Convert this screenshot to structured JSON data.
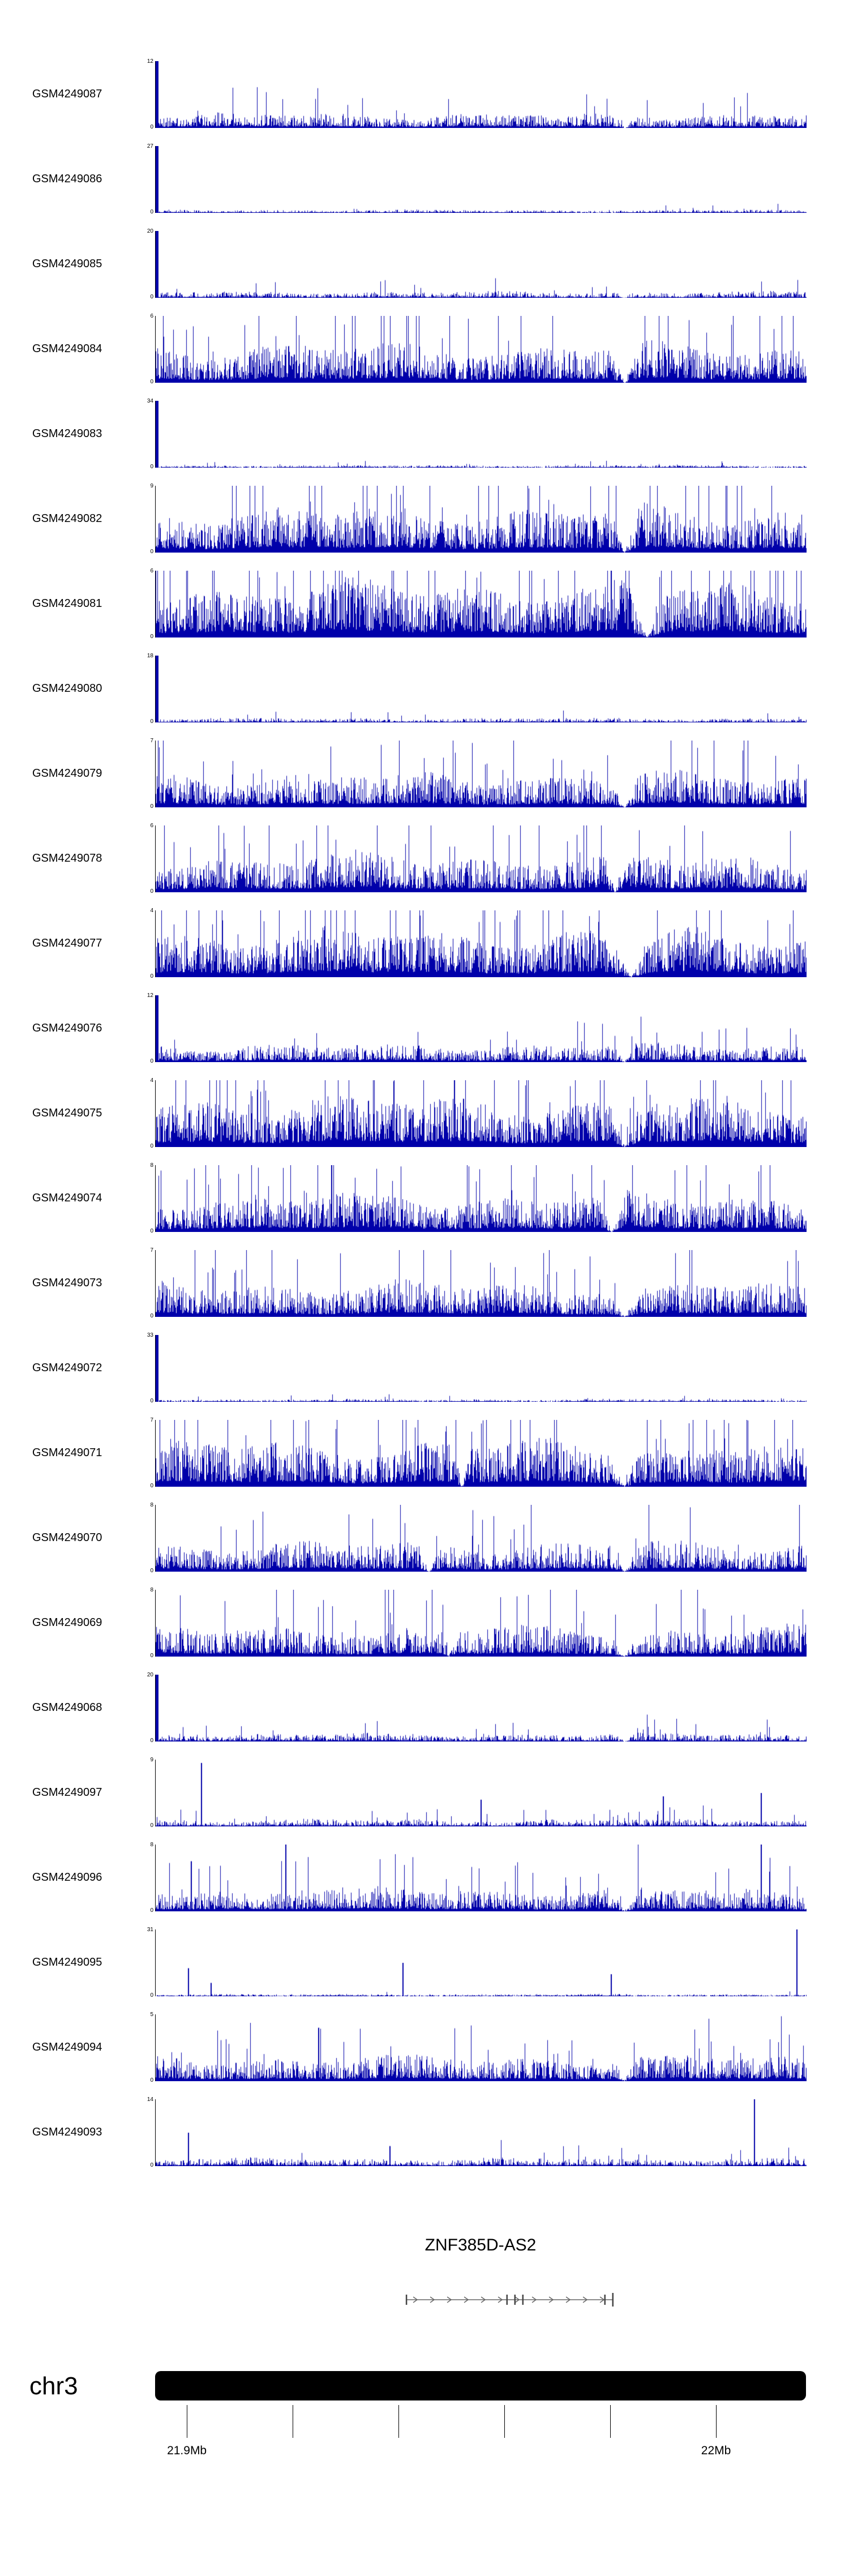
{
  "figure": {
    "background": "#ffffff",
    "signal_color": "#0000aa",
    "axis_color": "#000000"
  },
  "chart_data": {
    "type": "area",
    "description": "Stacked genome-browser read-coverage tracks for 25 GEO samples over chr3 around ZNF385D-AS2. Each track shows dense dark-blue coverage signal from 0 to a per-track y-axis maximum; several tracks are dominated by a single tall spike at the left edge, and most dense tracks share triangular coverage gaps (notches) near 42-47% and 70-75% of the region. Below the tracks: the ZNF385D-AS2 gene model (right-pointing strand arrows with exon tick marks), a solid black chr3 ideogram bar, and a genomic scale from 21.9Mb to 22Mb.",
    "region": {
      "chromosome": "chr3",
      "start_mb": 21.894,
      "end_mb": 22.017
    },
    "x_axis": {
      "ticks": [
        {
          "mb": 21.9,
          "label": "21.9Mb"
        },
        {
          "mb": 21.92,
          "label": ""
        },
        {
          "mb": 21.94,
          "label": ""
        },
        {
          "mb": 21.96,
          "label": ""
        },
        {
          "mb": 21.98,
          "label": ""
        },
        {
          "mb": 22.0,
          "label": "22Mb"
        }
      ]
    },
    "tracks": [
      {
        "label": "GSM4249087",
        "ymin": 0,
        "ymax": 12,
        "seed": 11,
        "base": 0.16,
        "shape": 2.2,
        "spike_prob": 0.025,
        "left_spike": true,
        "notches": [
          [
            0.72,
            0.015
          ]
        ],
        "spikes": []
      },
      {
        "label": "GSM4249086",
        "ymin": 0,
        "ymax": 27,
        "seed": 12,
        "base": 0.035,
        "shape": 3.0,
        "spike_prob": 0.008,
        "left_spike": true,
        "notches": [],
        "spikes": []
      },
      {
        "label": "GSM4249085",
        "ymin": 0,
        "ymax": 20,
        "seed": 13,
        "base": 0.07,
        "shape": 2.6,
        "spike_prob": 0.012,
        "left_spike": true,
        "notches": [
          [
            0.72,
            0.012
          ]
        ],
        "spikes": []
      },
      {
        "label": "GSM4249084",
        "ymin": 0,
        "ymax": 6,
        "seed": 14,
        "base": 0.42,
        "shape": 1.8,
        "spike_prob": 0.03,
        "left_spike": false,
        "notches": [
          [
            0.72,
            0.022
          ]
        ],
        "spikes": []
      },
      {
        "label": "GSM4249083",
        "ymin": 0,
        "ymax": 34,
        "seed": 15,
        "base": 0.028,
        "shape": 3.0,
        "spike_prob": 0.006,
        "left_spike": true,
        "notches": [],
        "spikes": []
      },
      {
        "label": "GSM4249082",
        "ymin": 0,
        "ymax": 9,
        "seed": 16,
        "base": 0.5,
        "shape": 1.8,
        "spike_prob": 0.035,
        "left_spike": false,
        "notches": [
          [
            0.72,
            0.022
          ]
        ],
        "spikes": []
      },
      {
        "label": "GSM4249081",
        "ymin": 0,
        "ymax": 6,
        "seed": 17,
        "base": 0.6,
        "shape": 1.6,
        "spike_prob": 0.04,
        "left_spike": false,
        "notches": [
          [
            0.755,
            0.03
          ]
        ],
        "spikes": []
      },
      {
        "label": "GSM4249080",
        "ymin": 0,
        "ymax": 18,
        "seed": 18,
        "base": 0.05,
        "shape": 2.8,
        "spike_prob": 0.01,
        "left_spike": true,
        "notches": [],
        "spikes": []
      },
      {
        "label": "GSM4249079",
        "ymin": 0,
        "ymax": 7,
        "seed": 19,
        "base": 0.38,
        "shape": 1.9,
        "spike_prob": 0.03,
        "left_spike": false,
        "notches": [
          [
            0.72,
            0.02
          ]
        ],
        "spikes": []
      },
      {
        "label": "GSM4249078",
        "ymin": 0,
        "ymax": 6,
        "seed": 20,
        "base": 0.42,
        "shape": 1.9,
        "spike_prob": 0.03,
        "left_spike": false,
        "notches": [
          [
            0.705,
            0.015
          ]
        ],
        "spikes": []
      },
      {
        "label": "GSM4249077",
        "ymin": 0,
        "ymax": 4,
        "seed": 21,
        "base": 0.52,
        "shape": 1.7,
        "spike_prob": 0.04,
        "left_spike": false,
        "notches": [
          [
            0.73,
            0.035
          ]
        ],
        "spikes": []
      },
      {
        "label": "GSM4249076",
        "ymin": 0,
        "ymax": 12,
        "seed": 22,
        "base": 0.2,
        "shape": 2.2,
        "spike_prob": 0.02,
        "left_spike": true,
        "notches": [
          [
            0.72,
            0.018
          ]
        ],
        "spikes": []
      },
      {
        "label": "GSM4249075",
        "ymin": 0,
        "ymax": 4,
        "seed": 23,
        "base": 0.55,
        "shape": 1.7,
        "spike_prob": 0.04,
        "left_spike": false,
        "notches": [
          [
            0.72,
            0.025
          ]
        ],
        "spikes": []
      },
      {
        "label": "GSM4249074",
        "ymin": 0,
        "ymax": 8,
        "seed": 24,
        "base": 0.42,
        "shape": 1.9,
        "spike_prob": 0.03,
        "left_spike": false,
        "notches": [
          [
            0.7,
            0.02
          ]
        ],
        "spikes": []
      },
      {
        "label": "GSM4249073",
        "ymin": 0,
        "ymax": 7,
        "seed": 25,
        "base": 0.38,
        "shape": 2.0,
        "spike_prob": 0.03,
        "left_spike": false,
        "notches": [
          [
            0.72,
            0.028
          ]
        ],
        "spikes": []
      },
      {
        "label": "GSM4249072",
        "ymin": 0,
        "ymax": 33,
        "seed": 26,
        "base": 0.03,
        "shape": 3.0,
        "spike_prob": 0.006,
        "left_spike": true,
        "notches": [],
        "spikes": []
      },
      {
        "label": "GSM4249071",
        "ymin": 0,
        "ymax": 7,
        "seed": 27,
        "base": 0.5,
        "shape": 1.8,
        "spike_prob": 0.035,
        "left_spike": false,
        "notches": [
          [
            0.47,
            0.012
          ],
          [
            0.72,
            0.022
          ]
        ],
        "spikes": []
      },
      {
        "label": "GSM4249070",
        "ymin": 0,
        "ymax": 8,
        "seed": 28,
        "base": 0.33,
        "shape": 2.0,
        "spike_prob": 0.03,
        "left_spike": false,
        "notches": [
          [
            0.42,
            0.018
          ],
          [
            0.72,
            0.022
          ]
        ],
        "spikes": []
      },
      {
        "label": "GSM4249069",
        "ymin": 0,
        "ymax": 8,
        "seed": 29,
        "base": 0.33,
        "shape": 2.0,
        "spike_prob": 0.03,
        "left_spike": false,
        "notches": [
          [
            0.45,
            0.012
          ],
          [
            0.72,
            0.02
          ]
        ],
        "spikes": []
      },
      {
        "label": "GSM4249068",
        "ymin": 0,
        "ymax": 20,
        "seed": 30,
        "base": 0.09,
        "shape": 2.5,
        "spike_prob": 0.015,
        "left_spike": true,
        "notches": [
          [
            0.72,
            0.015
          ]
        ],
        "spikes": []
      },
      {
        "label": "GSM4249097",
        "ymin": 0,
        "ymax": 9,
        "seed": 31,
        "base": 0.08,
        "shape": 2.6,
        "spike_prob": 0.02,
        "left_spike": false,
        "notches": [],
        "spikes": [
          [
            0.07,
            0.95
          ],
          [
            0.5,
            0.4
          ],
          [
            0.78,
            0.45
          ],
          [
            0.93,
            0.5
          ]
        ]
      },
      {
        "label": "GSM4249096",
        "ymin": 0,
        "ymax": 8,
        "seed": 32,
        "base": 0.26,
        "shape": 2.1,
        "spike_prob": 0.03,
        "left_spike": false,
        "notches": [
          [
            0.72,
            0.02
          ]
        ],
        "spikes": [
          [
            0.055,
            0.75
          ],
          [
            0.2,
            1.0
          ],
          [
            0.93,
            1.0
          ]
        ]
      },
      {
        "label": "GSM4249095",
        "ymin": 0,
        "ymax": 31,
        "seed": 33,
        "base": 0.025,
        "shape": 3.0,
        "spike_prob": 0.006,
        "left_spike": false,
        "notches": [],
        "spikes": [
          [
            0.05,
            0.42
          ],
          [
            0.085,
            0.2
          ],
          [
            0.38,
            0.5
          ],
          [
            0.7,
            0.33
          ],
          [
            0.985,
            1.0
          ]
        ]
      },
      {
        "label": "GSM4249094",
        "ymin": 0,
        "ymax": 5,
        "seed": 34,
        "base": 0.28,
        "shape": 2.1,
        "spike_prob": 0.03,
        "left_spike": false,
        "notches": [
          [
            0.72,
            0.012
          ]
        ],
        "spikes": [
          [
            0.25,
            0.8
          ]
        ]
      },
      {
        "label": "GSM4249093",
        "ymin": 0,
        "ymax": 14,
        "seed": 35,
        "base": 0.09,
        "shape": 2.6,
        "spike_prob": 0.015,
        "left_spike": false,
        "notches": [],
        "spikes": [
          [
            0.05,
            0.5
          ],
          [
            0.36,
            0.3
          ],
          [
            0.92,
            1.0
          ]
        ]
      }
    ],
    "gene": {
      "name": "ZNF385D-AS2",
      "strand": "right",
      "start_mb": 21.9415,
      "end_mb": 21.9805,
      "exons_mb": [
        21.9415,
        21.9605,
        21.962,
        21.9635,
        21.979,
        21.9805
      ]
    },
    "ideogram": {
      "chromosome_label": "chr3",
      "color": "#000000"
    }
  }
}
